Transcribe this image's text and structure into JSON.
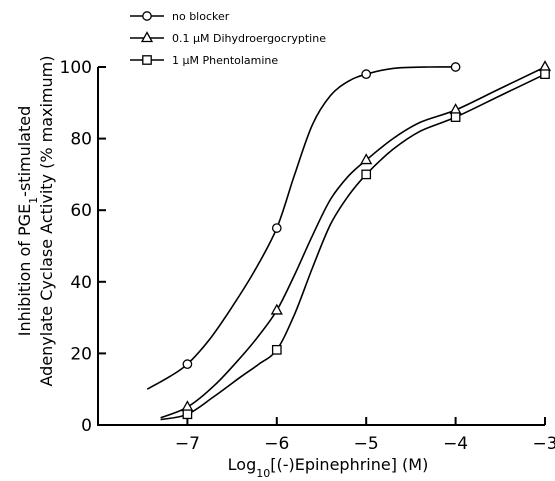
{
  "chart_data": {
    "type": "line",
    "xlabel": "Log10[(-)Epinephrine] (M)",
    "ylabel_line1": "Inhibition of PGE1-stimulated",
    "ylabel_line2": "Adenylate Cyclase Activity (% maximum)",
    "xlim": [
      -8,
      -3
    ],
    "ylim": [
      0,
      100
    ],
    "x_ticks": [
      -7,
      -6,
      -5,
      -4,
      -3
    ],
    "y_ticks": [
      0,
      20,
      40,
      60,
      80,
      100
    ],
    "legend_position": "top-left",
    "series": [
      {
        "name": "no blocker",
        "marker": "circle",
        "points": [
          [
            -7,
            17
          ],
          [
            -6,
            55
          ],
          [
            -5,
            98
          ],
          [
            -4,
            100
          ]
        ],
        "curve": [
          [
            -7.45,
            10
          ],
          [
            -7.2,
            13.5
          ],
          [
            -7,
            17
          ],
          [
            -6.75,
            24
          ],
          [
            -6.5,
            33
          ],
          [
            -6.25,
            43
          ],
          [
            -6,
            55
          ],
          [
            -5.8,
            70
          ],
          [
            -5.6,
            84
          ],
          [
            -5.4,
            92
          ],
          [
            -5.2,
            96
          ],
          [
            -5,
            98
          ],
          [
            -4.7,
            99.6
          ],
          [
            -4.3,
            100
          ],
          [
            -4,
            100
          ]
        ]
      },
      {
        "name": "0.1 μM Dihydroergocryptine",
        "marker": "triangle",
        "points": [
          [
            -7,
            5
          ],
          [
            -6,
            32
          ],
          [
            -5,
            74
          ],
          [
            -4,
            88
          ],
          [
            -3,
            100
          ]
        ],
        "curve": [
          [
            -7.3,
            2
          ],
          [
            -7,
            5
          ],
          [
            -6.7,
            11
          ],
          [
            -6.4,
            19
          ],
          [
            -6.2,
            25
          ],
          [
            -6,
            32
          ],
          [
            -5.8,
            42
          ],
          [
            -5.6,
            53
          ],
          [
            -5.4,
            63
          ],
          [
            -5.2,
            69.5
          ],
          [
            -5,
            74
          ],
          [
            -4.7,
            80
          ],
          [
            -4.4,
            84.5
          ],
          [
            -4,
            88
          ],
          [
            -3.5,
            94
          ],
          [
            -3,
            100
          ]
        ]
      },
      {
        "name": "1 μM Phentolamine",
        "marker": "square",
        "points": [
          [
            -7,
            3
          ],
          [
            -6,
            21
          ],
          [
            -5,
            70
          ],
          [
            -4,
            86
          ],
          [
            -3,
            98
          ]
        ],
        "curve": [
          [
            -7.3,
            1.5
          ],
          [
            -7,
            3
          ],
          [
            -6.7,
            8
          ],
          [
            -6.4,
            13.5
          ],
          [
            -6.2,
            17
          ],
          [
            -6,
            21
          ],
          [
            -5.8,
            31
          ],
          [
            -5.6,
            44
          ],
          [
            -5.4,
            56
          ],
          [
            -5.2,
            64
          ],
          [
            -5,
            70
          ],
          [
            -4.7,
            77
          ],
          [
            -4.4,
            82
          ],
          [
            -4,
            86
          ],
          [
            -3.5,
            92
          ],
          [
            -3,
            98
          ]
        ]
      }
    ]
  }
}
